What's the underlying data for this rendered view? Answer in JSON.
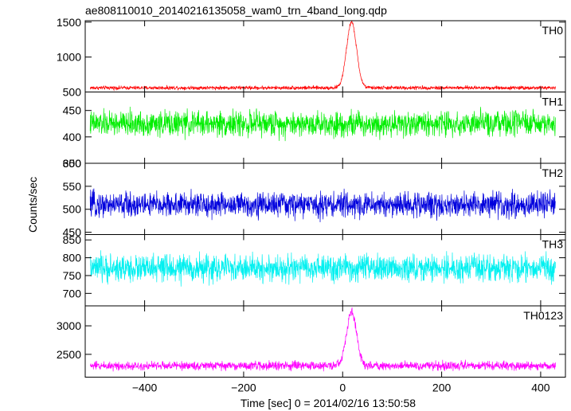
{
  "chart_data": {
    "type": "line",
    "title": "ae808110010_20140216135058_wam0_trn_4band_long.qdp",
    "xlabel": "Time [sec] 0 = 2014/02/16 13:50:58",
    "ylabel": "Counts/sec",
    "xlim": [
      -520,
      450
    ],
    "xticks": [
      -400,
      -200,
      0,
      200,
      400
    ],
    "xtick_labels": [
      "−400",
      "−200",
      "0",
      "200",
      "400"
    ],
    "x_start": -510,
    "x_end": 430,
    "grid": false,
    "panels": [
      {
        "name": "TH0",
        "color": "#ff0000",
        "ylim": [
          500,
          1520
        ],
        "yticks": [
          500,
          1000,
          1500
        ],
        "baseline": 560,
        "noise": 25,
        "peak": 1500,
        "peak_center": 18,
        "peak_width": 10
      },
      {
        "name": "TH1",
        "color": "#00ee00",
        "ylim": [
          350,
          485
        ],
        "yticks": [
          350,
          400,
          450
        ],
        "baseline": 425,
        "noise": 22,
        "peak": 0,
        "peak_center": 18,
        "peak_width": 10
      },
      {
        "name": "TH2",
        "color": "#0000dd",
        "ylim": [
          445,
          600
        ],
        "yticks": [
          450,
          500,
          550,
          600
        ],
        "baseline": 510,
        "noise": 25,
        "peak": 0,
        "peak_center": 18,
        "peak_width": 10
      },
      {
        "name": "TH3",
        "color": "#00f0f0",
        "ylim": [
          665,
          865
        ],
        "yticks": [
          700,
          750,
          800,
          850
        ],
        "baseline": 770,
        "noise": 35,
        "peak": 0,
        "peak_center": 18,
        "peak_width": 10
      },
      {
        "name": "TH0123",
        "color": "#ff00ff",
        "ylim": [
          2100,
          3350
        ],
        "yticks": [
          2500,
          3000
        ],
        "baseline": 2300,
        "noise": 70,
        "peak": 3250,
        "peak_center": 18,
        "peak_width": 10
      }
    ]
  }
}
